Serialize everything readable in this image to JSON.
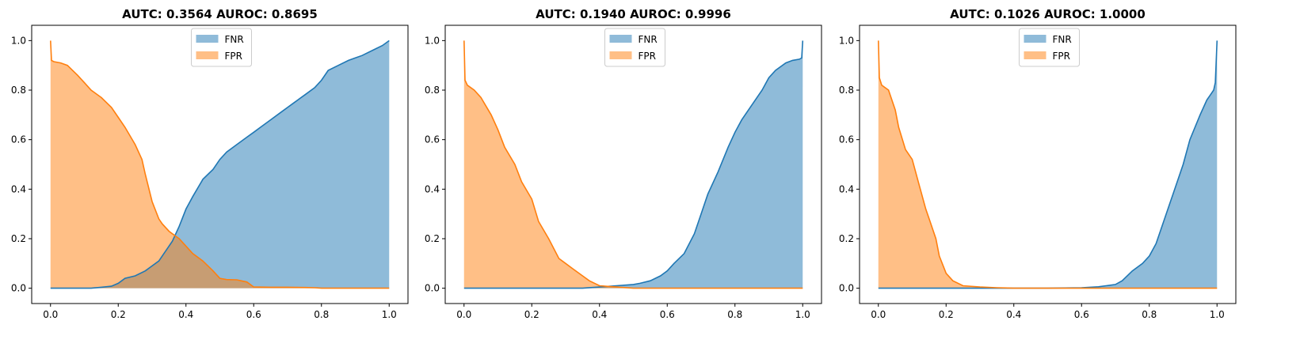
{
  "colors": {
    "fnr": "#1f77b4",
    "fpr": "#ff7f0e"
  },
  "chart_data": [
    {
      "type": "area",
      "title": "AUTC: 0.3564  AUROC: 0.8695",
      "xlim": [
        0,
        1
      ],
      "ylim": [
        0,
        1
      ],
      "xticks": [
        "0.0",
        "0.2",
        "0.4",
        "0.6",
        "0.8",
        "1.0"
      ],
      "yticks": [
        "0.0",
        "0.2",
        "0.4",
        "0.6",
        "0.8",
        "1.0"
      ],
      "grid": false,
      "legend_position": "top-center",
      "series": [
        {
          "name": "FNR",
          "x": [
            0,
            0.12,
            0.15,
            0.18,
            0.2,
            0.22,
            0.25,
            0.28,
            0.3,
            0.32,
            0.34,
            0.36,
            0.38,
            0.4,
            0.42,
            0.45,
            0.48,
            0.5,
            0.52,
            0.55,
            0.58,
            0.6,
            0.62,
            0.65,
            0.68,
            0.7,
            0.72,
            0.75,
            0.78,
            0.8,
            0.82,
            0.85,
            0.88,
            0.9,
            0.92,
            0.95,
            0.98,
            0.99,
            1.0
          ],
          "y": [
            0,
            0,
            0.004,
            0.008,
            0.02,
            0.04,
            0.05,
            0.07,
            0.09,
            0.11,
            0.15,
            0.19,
            0.25,
            0.32,
            0.37,
            0.44,
            0.48,
            0.52,
            0.55,
            0.58,
            0.61,
            0.63,
            0.65,
            0.68,
            0.71,
            0.73,
            0.75,
            0.78,
            0.81,
            0.84,
            0.88,
            0.9,
            0.92,
            0.93,
            0.94,
            0.96,
            0.98,
            0.99,
            1.0
          ]
        },
        {
          "name": "FPR",
          "x": [
            0,
            0.003,
            0.01,
            0.03,
            0.05,
            0.08,
            0.1,
            0.12,
            0.15,
            0.18,
            0.2,
            0.22,
            0.25,
            0.27,
            0.28,
            0.3,
            0.32,
            0.33,
            0.35,
            0.37,
            0.38,
            0.4,
            0.42,
            0.45,
            0.48,
            0.5,
            0.52,
            0.55,
            0.58,
            0.6,
            0.65,
            0.7,
            0.75,
            0.78,
            0.8,
            1.0
          ],
          "y": [
            1.0,
            0.92,
            0.915,
            0.91,
            0.9,
            0.86,
            0.83,
            0.8,
            0.77,
            0.73,
            0.69,
            0.65,
            0.58,
            0.52,
            0.46,
            0.35,
            0.28,
            0.26,
            0.23,
            0.21,
            0.2,
            0.17,
            0.14,
            0.11,
            0.07,
            0.04,
            0.035,
            0.034,
            0.025,
            0.005,
            0.004,
            0.004,
            0.003,
            0.002,
            0,
            0
          ]
        }
      ]
    },
    {
      "type": "area",
      "title": "AUTC: 0.1940  AUROC: 0.9996",
      "xlim": [
        0,
        1
      ],
      "ylim": [
        0,
        1
      ],
      "xticks": [
        "0.0",
        "0.2",
        "0.4",
        "0.6",
        "0.8",
        "1.0"
      ],
      "yticks": [
        "0.0",
        "0.2",
        "0.4",
        "0.6",
        "0.8",
        "1.0"
      ],
      "grid": false,
      "legend_position": "top-center",
      "series": [
        {
          "name": "FNR",
          "x": [
            0,
            0.35,
            0.4,
            0.45,
            0.5,
            0.52,
            0.55,
            0.58,
            0.6,
            0.62,
            0.65,
            0.68,
            0.7,
            0.72,
            0.75,
            0.78,
            0.8,
            0.82,
            0.85,
            0.88,
            0.9,
            0.92,
            0.95,
            0.97,
            0.99,
            0.997,
            1.0
          ],
          "y": [
            0,
            0,
            0.005,
            0.01,
            0.015,
            0.02,
            0.03,
            0.05,
            0.07,
            0.1,
            0.14,
            0.22,
            0.3,
            0.38,
            0.47,
            0.57,
            0.63,
            0.68,
            0.74,
            0.8,
            0.85,
            0.88,
            0.91,
            0.92,
            0.925,
            0.93,
            1.0
          ]
        },
        {
          "name": "FPR",
          "x": [
            0,
            0.003,
            0.01,
            0.03,
            0.05,
            0.08,
            0.1,
            0.12,
            0.15,
            0.17,
            0.2,
            0.22,
            0.25,
            0.28,
            0.3,
            0.32,
            0.35,
            0.37,
            0.4,
            0.45,
            0.5,
            1.0
          ],
          "y": [
            1.0,
            0.84,
            0.82,
            0.8,
            0.77,
            0.7,
            0.64,
            0.57,
            0.5,
            0.43,
            0.36,
            0.27,
            0.2,
            0.12,
            0.1,
            0.08,
            0.05,
            0.03,
            0.01,
            0.005,
            0,
            0
          ]
        }
      ]
    },
    {
      "type": "area",
      "title": "AUTC: 0.1026  AUROC: 1.0000",
      "xlim": [
        0,
        1
      ],
      "ylim": [
        0,
        1
      ],
      "xticks": [
        "0.0",
        "0.2",
        "0.4",
        "0.6",
        "0.8",
        "1.0"
      ],
      "yticks": [
        "0.0",
        "0.2",
        "0.4",
        "0.6",
        "0.8",
        "1.0"
      ],
      "grid": false,
      "legend_position": "top-center",
      "series": [
        {
          "name": "FNR",
          "x": [
            0,
            0.5,
            0.6,
            0.65,
            0.7,
            0.72,
            0.75,
            0.78,
            0.8,
            0.82,
            0.85,
            0.87,
            0.9,
            0.92,
            0.95,
            0.97,
            0.98,
            0.99,
            0.995,
            1.0
          ],
          "y": [
            0,
            0,
            0.002,
            0.006,
            0.015,
            0.03,
            0.07,
            0.1,
            0.13,
            0.18,
            0.3,
            0.38,
            0.5,
            0.6,
            0.7,
            0.76,
            0.78,
            0.8,
            0.83,
            1.0
          ]
        },
        {
          "name": "FPR",
          "x": [
            0,
            0.003,
            0.01,
            0.03,
            0.05,
            0.06,
            0.08,
            0.1,
            0.12,
            0.14,
            0.15,
            0.17,
            0.18,
            0.2,
            0.22,
            0.25,
            0.3,
            0.35,
            0.4,
            1.0
          ],
          "y": [
            1.0,
            0.85,
            0.82,
            0.8,
            0.72,
            0.65,
            0.56,
            0.52,
            0.42,
            0.32,
            0.28,
            0.2,
            0.13,
            0.06,
            0.03,
            0.01,
            0.005,
            0.002,
            0,
            0
          ]
        }
      ]
    }
  ]
}
